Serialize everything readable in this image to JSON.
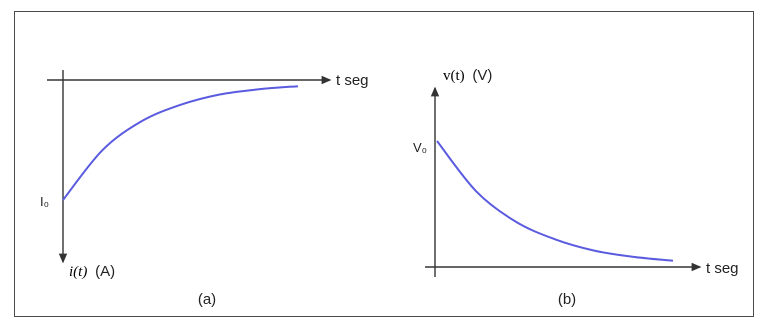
{
  "chart_data": [
    {
      "type": "line",
      "panel_label": "(a)",
      "x_axis_label": "t seg",
      "y_axis_label_var": "i(t)",
      "y_axis_label_unit": "(A)",
      "y_axis_direction": "downward",
      "start_label": "I₀",
      "curve": "i(t) rising from I0 toward the time axis, approaching asymptotically",
      "series": [
        {
          "values": [
            0.58,
            0.34,
            0.2,
            0.12,
            0.07,
            0.045,
            0.03
          ]
        }
      ]
    },
    {
      "type": "line",
      "panel_label": "(b)",
      "x_axis_label": "t seg",
      "y_axis_label_var": "v(t)",
      "y_axis_label_unit": "(V)",
      "start_label": "V₀",
      "curve": "v(t) decaying from V0 toward zero",
      "series": [
        {
          "values": [
            1.0,
            0.6,
            0.36,
            0.22,
            0.13,
            0.08,
            0.05
          ]
        }
      ]
    }
  ]
}
